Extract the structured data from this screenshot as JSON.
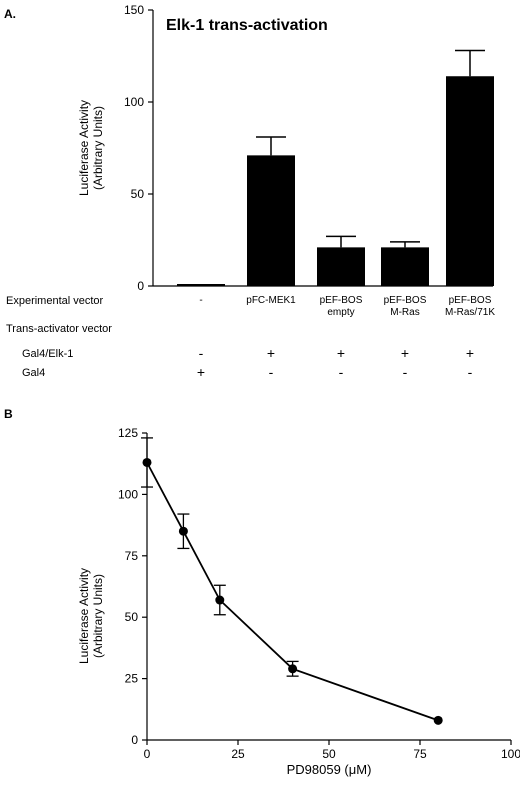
{
  "chart_data": [
    {
      "type": "bar",
      "panel_label": "A.",
      "title": "Elk-1 trans-activation",
      "ylabel_line1": "Luciferase Activity",
      "ylabel_line2": "(Arbitrary Units)",
      "ylim": [
        0,
        150
      ],
      "yticks": [
        0,
        50,
        100,
        150
      ],
      "categories": [
        "-",
        "pFC-MEK1",
        "pEF-BOS empty",
        "pEF-BOS M-Ras",
        "pEF-BOS M-Ras/71K"
      ],
      "values": [
        1,
        71,
        21,
        21,
        114
      ],
      "errors": [
        0,
        10,
        6,
        3,
        14
      ],
      "bar_color": "#000000",
      "table": {
        "experimental_label": "Experimental vector",
        "experimental": [
          [
            "-"
          ],
          [
            "pFC-MEK1"
          ],
          [
            "pEF-BOS",
            "empty"
          ],
          [
            "pEF-BOS",
            "M-Ras"
          ],
          [
            "pEF-BOS",
            "M-Ras/71K"
          ]
        ],
        "transactivator_label": "Trans-activator vector",
        "rows": [
          {
            "label": "Gal4/Elk-1",
            "marks": [
              "-",
              "+",
              "+",
              "+",
              "+"
            ]
          },
          {
            "label": "Gal4",
            "marks": [
              "+",
              "-",
              "-",
              "-",
              "-"
            ]
          }
        ]
      }
    },
    {
      "type": "line",
      "panel_label": "B",
      "title": "",
      "xlabel": "PD98059 (μM)",
      "ylabel_line1": "Luciferase Activity",
      "ylabel_line2": "(Arbitrary Units)",
      "xlim": [
        0,
        100
      ],
      "ylim": [
        0,
        125
      ],
      "xticks": [
        0,
        25,
        50,
        75,
        100
      ],
      "yticks": [
        0,
        25,
        50,
        75,
        100,
        125
      ],
      "x": [
        0,
        10,
        20,
        40,
        80
      ],
      "y": [
        113,
        85,
        57,
        29,
        8
      ],
      "errors": [
        10,
        7,
        6,
        3,
        0
      ],
      "line_color": "#000000"
    }
  ]
}
